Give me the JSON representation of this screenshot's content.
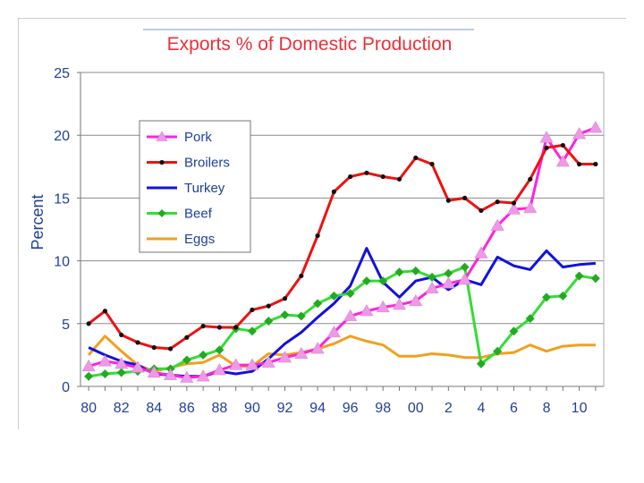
{
  "chart_data": {
    "type": "line",
    "title": "Exports % of Domestic Production",
    "xlabel": "",
    "ylabel": "Percent",
    "x": [
      1980,
      1981,
      1982,
      1983,
      1984,
      1985,
      1986,
      1987,
      1988,
      1989,
      1990,
      1991,
      1992,
      1993,
      1994,
      1995,
      1996,
      1997,
      1998,
      1999,
      2000,
      2001,
      2002,
      2003,
      2004,
      2005,
      2006,
      2007,
      2008,
      2009,
      2010,
      2011
    ],
    "xticks": [
      1980,
      1982,
      1984,
      1986,
      1988,
      1990,
      1992,
      1994,
      1996,
      1998,
      2000,
      2002,
      2004,
      2006,
      2008,
      2010
    ],
    "xtick_labels": [
      "80",
      "82",
      "84",
      "86",
      "88",
      "90",
      "92",
      "94",
      "96",
      "98",
      "00",
      "2",
      "4",
      "6",
      "8",
      "10"
    ],
    "xlim": [
      1979.5,
      2011.5
    ],
    "ylim": [
      0,
      25
    ],
    "yticks": [
      0,
      5,
      10,
      15,
      20,
      25
    ],
    "ytick_labels": [
      "0",
      "5",
      "10",
      "15",
      "20",
      "25"
    ],
    "grid": "horizontal",
    "legend_position": "upper-left",
    "series": [
      {
        "name": "Pork",
        "color": "#ff22dd",
        "marker": "triangle",
        "line_color": "#ff22dd",
        "marker_color": "#ee99e8",
        "values": [
          1.6,
          2.0,
          1.8,
          1.5,
          1.1,
          0.9,
          0.7,
          0.8,
          1.3,
          1.7,
          1.7,
          1.9,
          2.3,
          2.6,
          3.0,
          4.3,
          5.6,
          6.0,
          6.3,
          6.5,
          6.8,
          7.8,
          8.2,
          8.5,
          10.6,
          12.8,
          14.1,
          14.2,
          19.8,
          17.9,
          20.1,
          20.6
        ]
      },
      {
        "name": "Broilers",
        "color": "#ee1111",
        "marker": "dot",
        "line_color": "#ee1111",
        "marker_color": "#111111",
        "values": [
          5.0,
          6.0,
          4.1,
          3.5,
          3.1,
          3.0,
          3.9,
          4.8,
          4.7,
          4.7,
          6.1,
          6.4,
          7.0,
          8.8,
          12.0,
          15.5,
          16.7,
          17.0,
          16.7,
          16.5,
          18.2,
          17.7,
          14.8,
          15.0,
          14.0,
          14.7,
          14.6,
          16.5,
          19.0,
          19.2,
          17.7,
          17.7
        ]
      },
      {
        "name": "Turkey",
        "color": "#1111dd",
        "marker": "none",
        "line_color": "#1111dd",
        "marker_color": "#1111dd",
        "values": [
          3.1,
          2.5,
          2.0,
          1.7,
          1.0,
          0.9,
          0.8,
          0.8,
          1.2,
          1.0,
          1.2,
          2.2,
          3.4,
          4.3,
          5.5,
          6.6,
          8.0,
          11.0,
          8.3,
          7.1,
          8.4,
          8.7,
          7.7,
          8.5,
          8.1,
          10.3,
          9.6,
          9.3,
          10.8,
          9.5,
          9.7,
          9.8
        ]
      },
      {
        "name": "Beef",
        "color": "#33cc33",
        "marker": "diamond",
        "line_color": "#33dd33",
        "marker_color": "#22aa22",
        "values": [
          0.8,
          1.0,
          1.1,
          1.2,
          1.4,
          1.4,
          2.1,
          2.5,
          2.9,
          4.6,
          4.4,
          5.2,
          5.7,
          5.6,
          6.6,
          7.2,
          7.4,
          8.4,
          8.4,
          9.1,
          9.2,
          8.7,
          9.0,
          9.5,
          1.8,
          2.8,
          4.4,
          5.4,
          7.1,
          7.2,
          8.8,
          8.6
        ]
      },
      {
        "name": "Eggs",
        "color": "#f0a020",
        "marker": "none",
        "line_color": "#f0a020",
        "marker_color": "#f0a020",
        "values": [
          2.5,
          4.0,
          2.8,
          1.7,
          1.2,
          1.5,
          1.8,
          1.9,
          2.5,
          1.6,
          1.6,
          2.6,
          2.5,
          2.7,
          3.0,
          3.4,
          4.0,
          3.6,
          3.3,
          2.4,
          2.4,
          2.6,
          2.5,
          2.3,
          2.3,
          2.6,
          2.7,
          3.3,
          2.8,
          3.2,
          3.3,
          3.3
        ]
      }
    ]
  }
}
